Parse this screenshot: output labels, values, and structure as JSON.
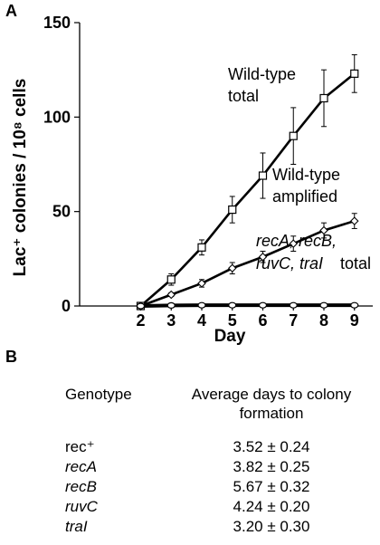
{
  "panels": {
    "a_label": "A",
    "b_label": "B"
  },
  "chart_data": {
    "type": "line",
    "xlabel": "Day",
    "ylabel": "Lac⁺ colonies / 10⁸ cells",
    "x": [
      2,
      3,
      4,
      5,
      6,
      7,
      8,
      9
    ],
    "xlim": [
      0,
      9.6
    ],
    "ylim": [
      0,
      150
    ],
    "yticks": [
      0,
      50,
      100,
      150
    ],
    "xticks": [
      2,
      3,
      4,
      5,
      6,
      7,
      8,
      9
    ],
    "series": [
      {
        "name": "Wild-type total",
        "marker": "square",
        "values": [
          0,
          14,
          31,
          51,
          69,
          90,
          110,
          123
        ],
        "errors": [
          0,
          3,
          4,
          7,
          12,
          15,
          15,
          10
        ]
      },
      {
        "name": "Wild-type amplified",
        "marker": "diamond",
        "values": [
          0,
          6,
          12,
          20,
          26,
          33,
          40,
          45
        ],
        "errors": [
          0,
          1,
          2,
          3,
          3,
          4,
          4,
          4
        ]
      },
      {
        "name": "recA, recB, ruvC, traI total",
        "marker": "circle",
        "values": [
          0,
          0.3,
          0.4,
          0.4,
          0.4,
          0.4,
          0.4,
          0.4
        ],
        "errors": [
          0,
          0,
          0,
          0,
          0,
          0,
          0,
          0
        ]
      }
    ],
    "annotations": {
      "wt_total_1": "Wild-type",
      "wt_total_2": "total",
      "wt_amp_1": "Wild-type",
      "wt_amp_2": "amplified",
      "mutants_1": "recA, recB,",
      "mutants_2": "ruvC, traI",
      "mutants_3": "total"
    }
  },
  "table": {
    "header_genotype": "Genotype",
    "header_value_1": "Average days to colony",
    "header_value_2": "formation",
    "rows": [
      {
        "genotype": "rec⁺",
        "italic": false,
        "value": "3.52 ± 0.24"
      },
      {
        "genotype": "recA",
        "italic": true,
        "value": "3.82 ± 0.25"
      },
      {
        "genotype": "recB",
        "italic": true,
        "value": "5.67 ± 0.32"
      },
      {
        "genotype": "ruvC",
        "italic": true,
        "value": "4.24 ± 0.20"
      },
      {
        "genotype": "traI",
        "italic": true,
        "value": "3.20 ± 0.30"
      }
    ]
  }
}
